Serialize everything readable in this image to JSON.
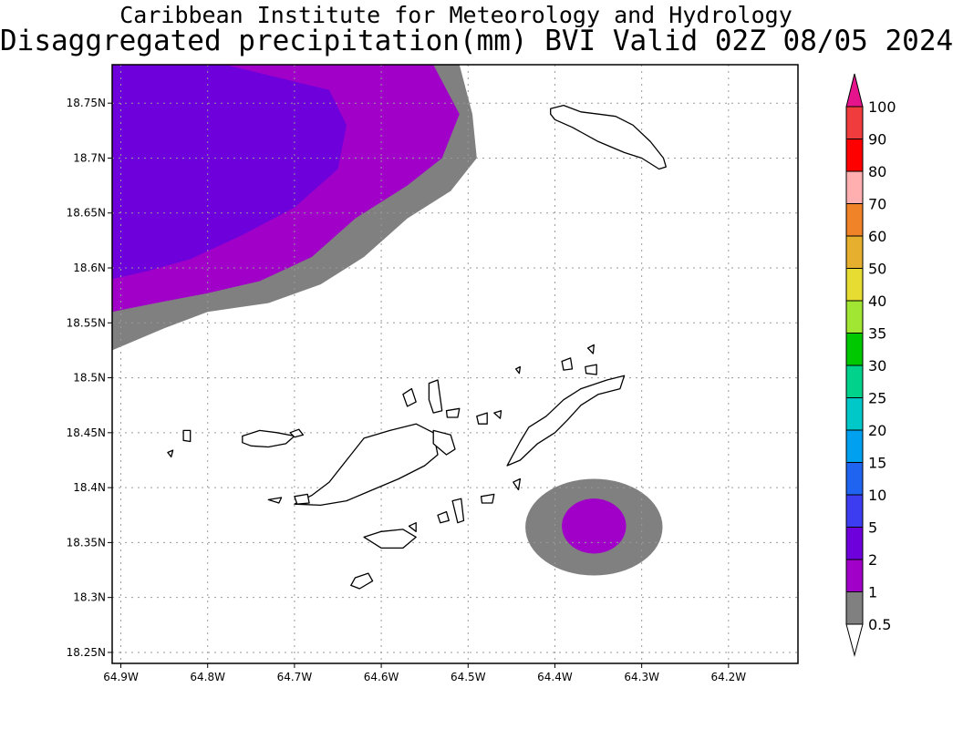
{
  "title": "Caribbean Institute for Meteorology and Hydrology",
  "subtitle": "Disaggregated precipitation(mm) BVI Valid 02Z 08/05 2024",
  "map": {
    "lon_range": [
      -64.91,
      -64.12
    ],
    "lat_range": [
      18.24,
      18.785
    ],
    "grid": true,
    "x_ticks": [
      {
        "value": -64.9,
        "label": "64.9W"
      },
      {
        "value": -64.8,
        "label": "64.8W"
      },
      {
        "value": -64.7,
        "label": "64.7W"
      },
      {
        "value": -64.6,
        "label": "64.6W"
      },
      {
        "value": -64.5,
        "label": "64.5W"
      },
      {
        "value": -64.4,
        "label": "64.4W"
      },
      {
        "value": -64.3,
        "label": "64.3W"
      },
      {
        "value": -64.2,
        "label": "64.2W"
      }
    ],
    "y_ticks": [
      {
        "value": 18.25,
        "label": "18.25N"
      },
      {
        "value": 18.3,
        "label": "18.3N"
      },
      {
        "value": 18.35,
        "label": "18.35N"
      },
      {
        "value": 18.4,
        "label": "18.4N"
      },
      {
        "value": 18.45,
        "label": "18.45N"
      },
      {
        "value": 18.5,
        "label": "18.5N"
      },
      {
        "value": 18.55,
        "label": "18.55N"
      },
      {
        "value": 18.6,
        "label": "18.6N"
      },
      {
        "value": 18.65,
        "label": "18.65N"
      },
      {
        "value": 18.7,
        "label": "18.7N"
      },
      {
        "value": 18.75,
        "label": "18.75N"
      }
    ]
  },
  "colorbar": {
    "levels": [
      {
        "label": "0.5",
        "color": "#ffffff"
      },
      {
        "label": "1",
        "color": "#808080"
      },
      {
        "label": "2",
        "color": "#a000c8"
      },
      {
        "label": "5",
        "color": "#6e00dc"
      },
      {
        "label": "10",
        "color": "#3c3cf0"
      },
      {
        "label": "15",
        "color": "#1e64f0"
      },
      {
        "label": "20",
        "color": "#00a0f0"
      },
      {
        "label": "25",
        "color": "#00c8c8"
      },
      {
        "label": "30",
        "color": "#00d28c"
      },
      {
        "label": "35",
        "color": "#00c800"
      },
      {
        "label": "40",
        "color": "#a0e632"
      },
      {
        "label": "50",
        "color": "#e6dc32"
      },
      {
        "label": "60",
        "color": "#e6af2d"
      },
      {
        "label": "70",
        "color": "#f08228"
      },
      {
        "label": "80",
        "color": "#ffafaf"
      },
      {
        "label": "90",
        "color": "#ff0000"
      },
      {
        "label": "100",
        "color": "#f03c3c"
      }
    ],
    "overflow_color": "#e6148c"
  },
  "precip_areas": [
    {
      "name": "northwest-rain-area",
      "bands": [
        {
          "level": "1",
          "color": "#808080",
          "points": [
            [
              -64.91,
              18.785
            ],
            [
              -64.51,
              18.785
            ],
            [
              -64.495,
              18.74
            ],
            [
              -64.49,
              18.7
            ],
            [
              -64.52,
              18.67
            ],
            [
              -64.57,
              18.645
            ],
            [
              -64.62,
              18.61
            ],
            [
              -64.67,
              18.585
            ],
            [
              -64.73,
              18.568
            ],
            [
              -64.8,
              18.56
            ],
            [
              -64.85,
              18.545
            ],
            [
              -64.91,
              18.525
            ]
          ]
        },
        {
          "level": "2",
          "color": "#a000c8",
          "points": [
            [
              -64.91,
              18.785
            ],
            [
              -64.54,
              18.785
            ],
            [
              -64.51,
              18.74
            ],
            [
              -64.53,
              18.7
            ],
            [
              -64.57,
              18.675
            ],
            [
              -64.63,
              18.645
            ],
            [
              -64.68,
              18.61
            ],
            [
              -64.74,
              18.588
            ],
            [
              -64.8,
              18.577
            ],
            [
              -64.86,
              18.568
            ],
            [
              -64.91,
              18.56
            ]
          ]
        },
        {
          "level": "5",
          "color": "#6e00dc",
          "points": [
            [
              -64.91,
              18.785
            ],
            [
              -64.78,
              18.785
            ],
            [
              -64.66,
              18.762
            ],
            [
              -64.64,
              18.73
            ],
            [
              -64.65,
              18.69
            ],
            [
              -64.7,
              18.655
            ],
            [
              -64.76,
              18.63
            ],
            [
              -64.82,
              18.608
            ],
            [
              -64.87,
              18.597
            ],
            [
              -64.91,
              18.59
            ]
          ]
        }
      ]
    },
    {
      "name": "southeast-rain-cell",
      "bands": [
        {
          "level": "1",
          "color": "#808080",
          "center": [
            -64.355,
            18.364
          ],
          "radius_lon": 0.079,
          "radius_lat": 0.044
        },
        {
          "level": "2",
          "color": "#a000c8",
          "center": [
            -64.355,
            18.365
          ],
          "radius_lon": 0.037,
          "radius_lat": 0.025
        }
      ]
    }
  ],
  "islands": [
    {
      "name": "jost-van-dyke",
      "points": [
        [
          -64.76,
          18.447
        ],
        [
          -64.74,
          18.452
        ],
        [
          -64.72,
          18.45
        ],
        [
          -64.7,
          18.447
        ],
        [
          -64.71,
          18.44
        ],
        [
          -64.73,
          18.437
        ],
        [
          -64.75,
          18.438
        ],
        [
          -64.76,
          18.441
        ]
      ]
    },
    {
      "name": "little-jost-van-dyke",
      "points": [
        [
          -64.705,
          18.45
        ],
        [
          -64.695,
          18.453
        ],
        [
          -64.69,
          18.448
        ],
        [
          -64.7,
          18.446
        ]
      ]
    },
    {
      "name": "sandy-cay",
      "points": [
        [
          -64.828,
          18.452
        ],
        [
          -64.82,
          18.452
        ],
        [
          -64.82,
          18.442
        ],
        [
          -64.828,
          18.443
        ]
      ]
    },
    {
      "name": "west-cay",
      "points": [
        [
          -64.846,
          18.432
        ],
        [
          -64.84,
          18.434
        ],
        [
          -64.842,
          18.428
        ]
      ]
    },
    {
      "name": "tortola",
      "points": [
        [
          -64.7,
          18.385
        ],
        [
          -64.68,
          18.393
        ],
        [
          -64.66,
          18.405
        ],
        [
          -64.64,
          18.425
        ],
        [
          -64.62,
          18.445
        ],
        [
          -64.59,
          18.452
        ],
        [
          -64.56,
          18.458
        ],
        [
          -64.54,
          18.45
        ],
        [
          -64.535,
          18.43
        ],
        [
          -64.55,
          18.42
        ],
        [
          -64.58,
          18.408
        ],
        [
          -64.61,
          18.398
        ],
        [
          -64.64,
          18.388
        ],
        [
          -64.67,
          18.384
        ]
      ]
    },
    {
      "name": "beef-island",
      "points": [
        [
          -64.54,
          18.452
        ],
        [
          -64.52,
          18.448
        ],
        [
          -64.515,
          18.435
        ],
        [
          -64.525,
          18.43
        ],
        [
          -64.54,
          18.44
        ]
      ]
    },
    {
      "name": "great-thatch",
      "points": [
        [
          -64.73,
          18.389
        ],
        [
          -64.715,
          18.391
        ],
        [
          -64.718,
          18.386
        ]
      ]
    },
    {
      "name": "frenchmans-cay",
      "points": [
        [
          -64.7,
          18.392
        ],
        [
          -64.685,
          18.394
        ],
        [
          -64.683,
          18.386
        ],
        [
          -64.697,
          18.385
        ]
      ]
    },
    {
      "name": "guana-island",
      "points": [
        [
          -64.575,
          18.485
        ],
        [
          -64.565,
          18.49
        ],
        [
          -64.56,
          18.478
        ],
        [
          -64.57,
          18.474
        ]
      ]
    },
    {
      "name": "great-camanoe",
      "points": [
        [
          -64.545,
          18.495
        ],
        [
          -64.535,
          18.498
        ],
        [
          -64.53,
          18.47
        ],
        [
          -64.54,
          18.468
        ],
        [
          -64.545,
          18.48
        ]
      ]
    },
    {
      "name": "scrub-island",
      "points": [
        [
          -64.525,
          18.47
        ],
        [
          -64.51,
          18.472
        ],
        [
          -64.512,
          18.464
        ],
        [
          -64.524,
          18.464
        ]
      ]
    },
    {
      "name": "norman-island",
      "points": [
        [
          -64.63,
          18.318
        ],
        [
          -64.615,
          18.322
        ],
        [
          -64.61,
          18.315
        ],
        [
          -64.625,
          18.308
        ],
        [
          -64.635,
          18.311
        ]
      ]
    },
    {
      "name": "peter-island",
      "points": [
        [
          -64.62,
          18.355
        ],
        [
          -64.6,
          18.36
        ],
        [
          -64.575,
          18.362
        ],
        [
          -64.56,
          18.355
        ],
        [
          -64.575,
          18.345
        ],
        [
          -64.6,
          18.345
        ]
      ]
    },
    {
      "name": "dead-chest",
      "points": [
        [
          -64.568,
          18.365
        ],
        [
          -64.56,
          18.368
        ],
        [
          -64.56,
          18.36
        ]
      ]
    },
    {
      "name": "salt-island",
      "points": [
        [
          -64.535,
          18.375
        ],
        [
          -64.525,
          18.378
        ],
        [
          -64.522,
          18.37
        ],
        [
          -64.532,
          18.368
        ]
      ]
    },
    {
      "name": "cooper-island",
      "points": [
        [
          -64.518,
          18.388
        ],
        [
          -64.508,
          18.39
        ],
        [
          -64.505,
          18.37
        ],
        [
          -64.512,
          18.368
        ]
      ]
    },
    {
      "name": "ginger-island",
      "points": [
        [
          -64.485,
          18.392
        ],
        [
          -64.47,
          18.394
        ],
        [
          -64.472,
          18.386
        ],
        [
          -64.484,
          18.386
        ]
      ]
    },
    {
      "name": "fallen-jerusalem",
      "points": [
        [
          -64.448,
          18.405
        ],
        [
          -64.44,
          18.408
        ],
        [
          -64.442,
          18.398
        ]
      ]
    },
    {
      "name": "virgin-gorda",
      "points": [
        [
          -64.455,
          18.42
        ],
        [
          -64.44,
          18.442
        ],
        [
          -64.43,
          18.455
        ],
        [
          -64.41,
          18.465
        ],
        [
          -64.39,
          18.48
        ],
        [
          -64.37,
          18.49
        ],
        [
          -64.34,
          18.498
        ],
        [
          -64.32,
          18.502
        ],
        [
          -64.325,
          18.49
        ],
        [
          -64.35,
          18.485
        ],
        [
          -64.37,
          18.475
        ],
        [
          -64.385,
          18.462
        ],
        [
          -64.4,
          18.45
        ],
        [
          -64.42,
          18.44
        ],
        [
          -64.44,
          18.425
        ]
      ]
    },
    {
      "name": "mosquito-island",
      "points": [
        [
          -64.392,
          18.515
        ],
        [
          -64.382,
          18.518
        ],
        [
          -64.38,
          18.508
        ],
        [
          -64.39,
          18.507
        ]
      ]
    },
    {
      "name": "prickly-pear",
      "points": [
        [
          -64.365,
          18.51
        ],
        [
          -64.352,
          18.512
        ],
        [
          -64.352,
          18.503
        ],
        [
          -64.364,
          18.504
        ]
      ]
    },
    {
      "name": "necker-island",
      "points": [
        [
          -64.362,
          18.527
        ],
        [
          -64.355,
          18.53
        ],
        [
          -64.356,
          18.522
        ]
      ]
    },
    {
      "name": "marina-cay",
      "points": [
        [
          -64.49,
          18.465
        ],
        [
          -64.478,
          18.468
        ],
        [
          -64.478,
          18.458
        ],
        [
          -64.488,
          18.458
        ]
      ]
    },
    {
      "name": "small-islet-a",
      "points": [
        [
          -64.47,
          18.468
        ],
        [
          -64.462,
          18.47
        ],
        [
          -64.463,
          18.463
        ]
      ]
    },
    {
      "name": "small-islet-b",
      "points": [
        [
          -64.445,
          18.508
        ],
        [
          -64.44,
          18.51
        ],
        [
          -64.441,
          18.504
        ]
      ]
    },
    {
      "name": "anegada",
      "points": [
        [
          -64.405,
          18.745
        ],
        [
          -64.39,
          18.748
        ],
        [
          -64.37,
          18.742
        ],
        [
          -64.35,
          18.74
        ],
        [
          -64.33,
          18.738
        ],
        [
          -64.31,
          18.73
        ],
        [
          -64.29,
          18.715
        ],
        [
          -64.275,
          18.7
        ],
        [
          -64.272,
          18.692
        ],
        [
          -64.28,
          18.69
        ],
        [
          -64.3,
          18.7
        ],
        [
          -64.32,
          18.705
        ],
        [
          -64.35,
          18.715
        ],
        [
          -64.38,
          18.728
        ],
        [
          -64.4,
          18.735
        ],
        [
          -64.405,
          18.74
        ]
      ]
    }
  ]
}
